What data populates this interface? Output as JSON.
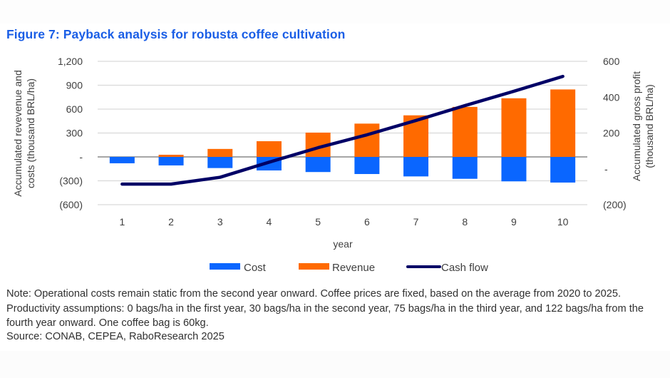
{
  "title": "Figure 7: Payback analysis for robusta coffee cultivation",
  "note": "Note: Operational costs remain static from the second year onward. Coffee prices are fixed, based on the average from 2020 to 2025. Productivity assumptions: 0 bags/ha in the first year, 30 bags/ha in the second year, 75 bags/ha in the third year, and 122 bags/ha from the fourth year onward. One coffee bag is 60kg.",
  "source": "Source: CONAB, CEPEA, RaboResearch 2025",
  "colors": {
    "title": "#1a5ee6",
    "cost": "#0a66ff",
    "revenue": "#ff6a00",
    "cash_flow": "#000066",
    "grid": "#d9d9d9",
    "zero_line": "#a6a6a6"
  },
  "chart_data": {
    "type": "bar",
    "title": "Figure 7: Payback analysis for robusta coffee cultivation",
    "xlabel": "year",
    "ylabel": "Accumulated revevenue and costs (thousand BRL/ha)",
    "y2label": "Accumulated gross profit (thousand BRL/ha)",
    "categories": [
      "1",
      "2",
      "3",
      "4",
      "5",
      "6",
      "7",
      "8",
      "9",
      "10"
    ],
    "ylim": [
      -600,
      1200
    ],
    "y2lim": [
      -200,
      600
    ],
    "yticks": [
      1200,
      900,
      600,
      300,
      0,
      -300,
      -600
    ],
    "ytick_labels": [
      "1,200",
      "900",
      "600",
      "300",
      "-",
      "(300)",
      "(600)"
    ],
    "y2ticks": [
      600,
      400,
      200,
      0,
      -200
    ],
    "y2tick_labels": [
      "600",
      "400",
      "200",
      "-",
      "(200)"
    ],
    "grid": true,
    "legend_position": "bottom",
    "series": [
      {
        "name": "Cost",
        "type": "bar",
        "axis": "left",
        "values": [
          -80,
          -107,
          -140,
          -170,
          -190,
          -215,
          -245,
          -275,
          -307,
          -322
        ]
      },
      {
        "name": "Revenue",
        "type": "bar",
        "axis": "left",
        "values": [
          0,
          27,
          100,
          197,
          305,
          418,
          522,
          628,
          736,
          847
        ]
      },
      {
        "name": "Cash flow",
        "type": "line",
        "axis": "right",
        "values": [
          -85,
          -85,
          -47,
          37,
          118,
          190,
          270,
          353,
          433,
          516
        ]
      }
    ]
  }
}
